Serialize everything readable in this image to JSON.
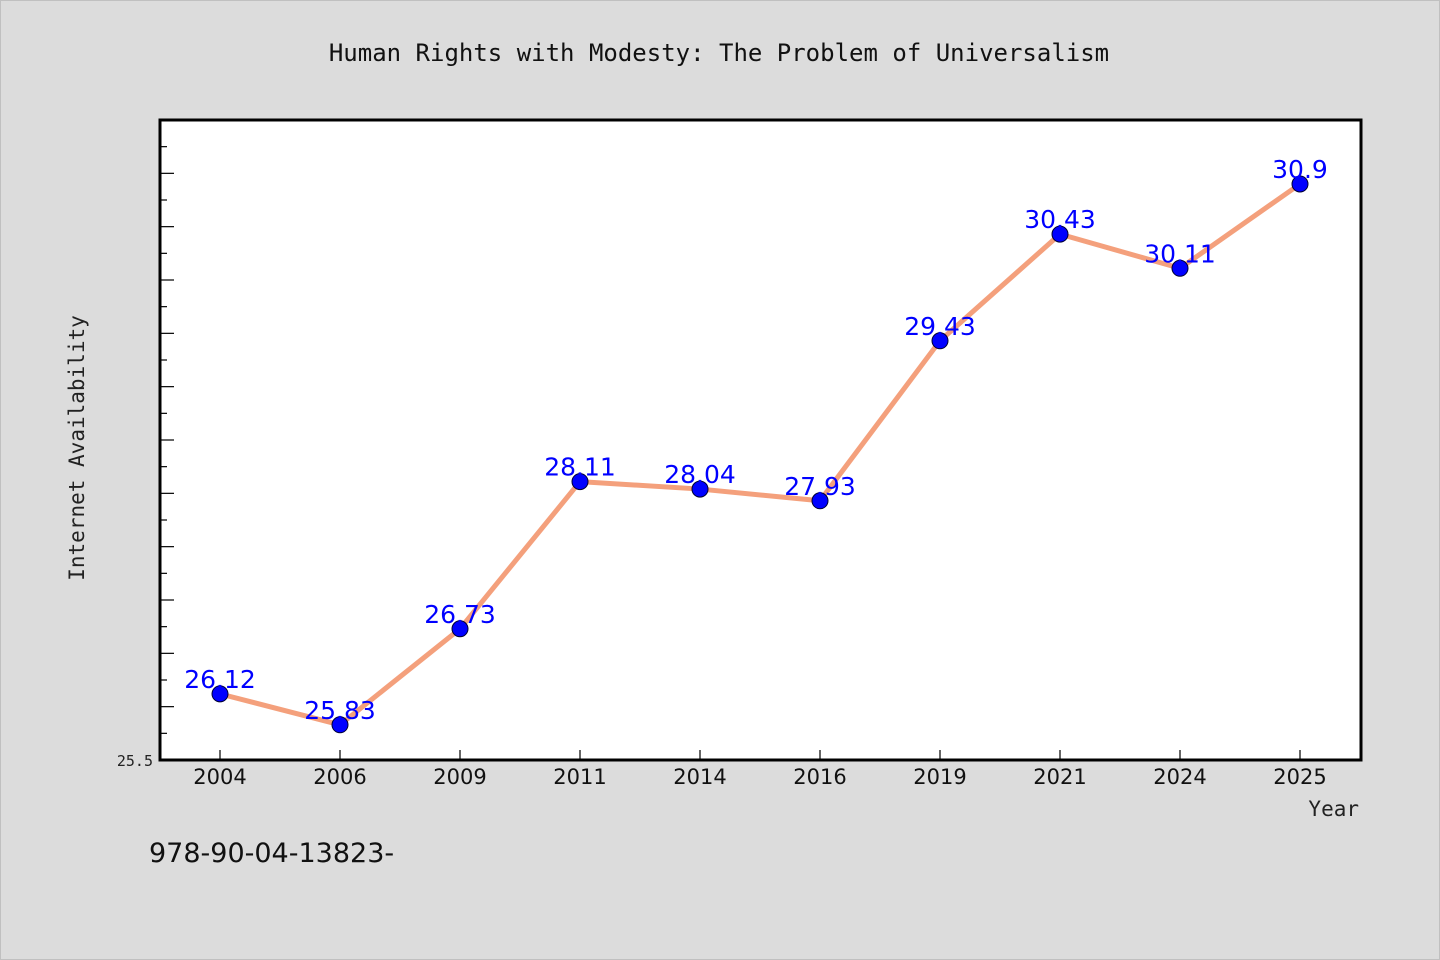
{
  "chart_data": {
    "type": "line",
    "title": "Human Rights with Modesty: The Problem of Universalism",
    "xlabel": "Year",
    "ylabel": "Internet Availability",
    "categories": [
      "2004",
      "2006",
      "2009",
      "2011",
      "2014",
      "2016",
      "2019",
      "2021",
      "2024",
      "2025"
    ],
    "series": [
      {
        "values": [
          26.12,
          25.83,
          26.73,
          28.11,
          28.04,
          27.93,
          29.43,
          30.43,
          30.11,
          30.9
        ],
        "labels": [
          "26.12",
          "25.83",
          "26.73",
          "28.11",
          "28.04",
          "27.93",
          "29.43",
          "30.43",
          "30.11",
          "30.9"
        ],
        "line_color": "#f4a07c",
        "marker_color": "#0000ff"
      }
    ],
    "ylim": [
      25.5,
      31.5
    ],
    "ytick_labels": [
      "25.5"
    ],
    "grid": false,
    "legend": false,
    "colors": {
      "background": "#dcdcdc",
      "plot_background": "#ffffff",
      "line": "#f4a07c",
      "marker": "#0000ff",
      "data_label": "#0000ff"
    }
  },
  "footer": {
    "code": "978-90-04-13823-"
  }
}
